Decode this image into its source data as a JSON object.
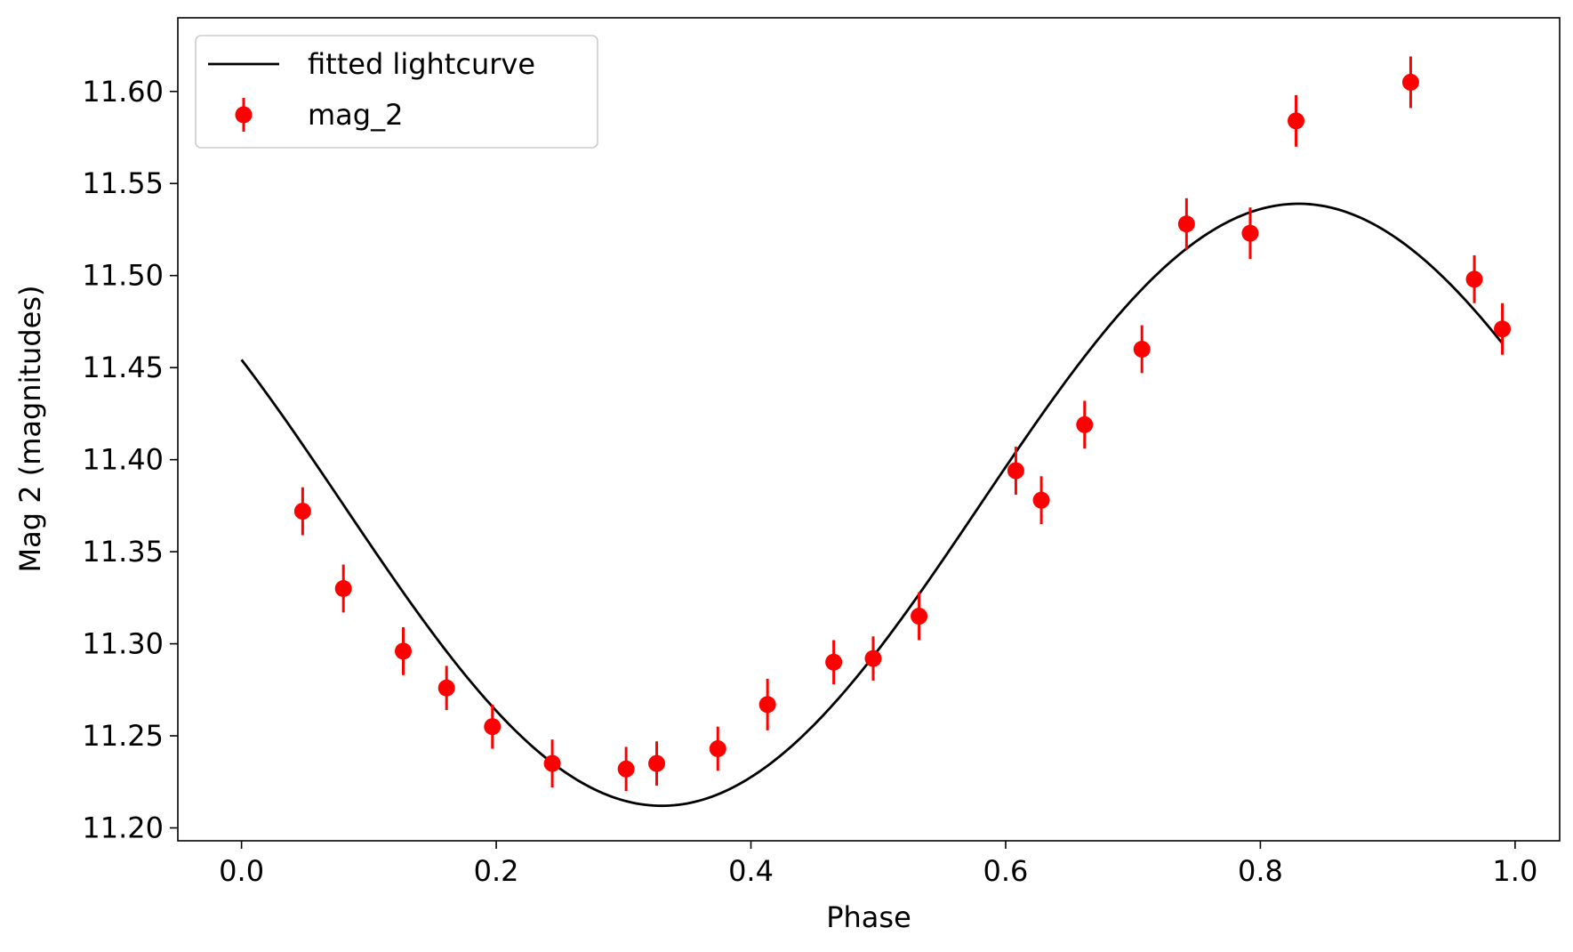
{
  "chart_data": {
    "type": "scatter",
    "title": "",
    "xlabel": "Phase",
    "ylabel": "Mag 2 (magnitudes)",
    "xlim": [
      -0.05,
      1.035
    ],
    "ylim": [
      11.193,
      11.64
    ],
    "xticks": [
      0.0,
      0.2,
      0.4,
      0.6,
      0.8,
      1.0
    ],
    "xtick_labels": [
      "0.0",
      "0.2",
      "0.4",
      "0.6",
      "0.8",
      "1.0"
    ],
    "yticks": [
      11.2,
      11.25,
      11.3,
      11.35,
      11.4,
      11.45,
      11.5,
      11.55,
      11.6
    ],
    "ytick_labels": [
      "11.20",
      "11.25",
      "11.30",
      "11.35",
      "11.40",
      "11.45",
      "11.50",
      "11.55",
      "11.60"
    ],
    "grid": false,
    "legend_position": "top-left",
    "colors": {
      "line": "#000000",
      "points": "#ff0000"
    },
    "series": [
      {
        "name": "fitted lightcurve",
        "kind": "line",
        "model": {
          "mean": 11.3755,
          "amplitude": 0.1635,
          "peak_phase": 0.83,
          "period": 1.0
        },
        "x_range": [
          0.0,
          0.99
        ]
      },
      {
        "name": "mag_2",
        "kind": "errorbar",
        "x": [
          0.048,
          0.08,
          0.127,
          0.161,
          0.197,
          0.244,
          0.302,
          0.326,
          0.374,
          0.413,
          0.465,
          0.496,
          0.532,
          0.608,
          0.628,
          0.662,
          0.707,
          0.742,
          0.792,
          0.828,
          0.918,
          0.968,
          0.99
        ],
        "y": [
          11.372,
          11.33,
          11.296,
          11.276,
          11.255,
          11.235,
          11.232,
          11.235,
          11.243,
          11.267,
          11.29,
          11.292,
          11.315,
          11.394,
          11.378,
          11.419,
          11.46,
          11.528,
          11.523,
          11.584,
          11.605,
          11.498,
          11.471
        ],
        "yerr": [
          0.013,
          0.013,
          0.013,
          0.012,
          0.012,
          0.013,
          0.012,
          0.012,
          0.012,
          0.014,
          0.012,
          0.012,
          0.013,
          0.013,
          0.013,
          0.013,
          0.013,
          0.014,
          0.014,
          0.014,
          0.014,
          0.013,
          0.014
        ]
      }
    ]
  }
}
